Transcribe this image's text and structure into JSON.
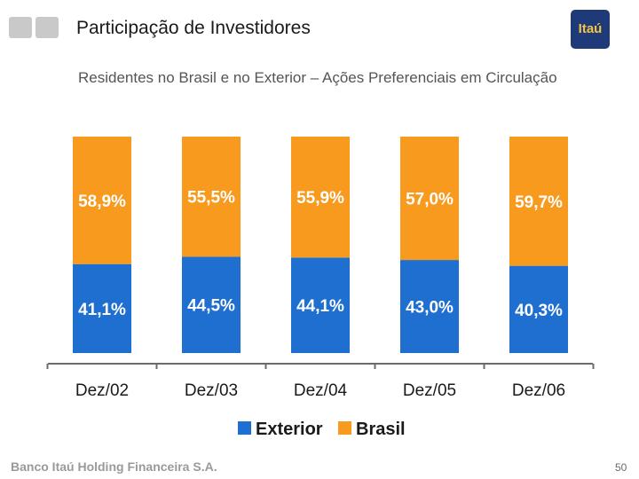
{
  "header": {
    "title": "Participação de Investidores",
    "subtitle": "Residentes no Brasil e no Exterior – Ações Preferenciais em Circulação",
    "logo_text": "Itaú"
  },
  "footer": {
    "company": "Banco Itaú Holding Financeira S.A.",
    "page_number": "50"
  },
  "colors": {
    "exterior": "#1f6fd1",
    "brasil": "#f79a1e"
  },
  "chart_data": {
    "type": "bar",
    "stacked": true,
    "percent_stacked": true,
    "categories": [
      "Dez/02",
      "Dez/03",
      "Dez/04",
      "Dez/05",
      "Dez/06"
    ],
    "series": [
      {
        "name": "Exterior",
        "values": [
          41.1,
          44.5,
          44.1,
          43.0,
          40.3
        ],
        "labels": [
          "41,1%",
          "44,5%",
          "44,1%",
          "43,0%",
          "40,3%"
        ]
      },
      {
        "name": "Brasil",
        "values": [
          58.9,
          55.5,
          55.9,
          57.0,
          59.7
        ],
        "labels": [
          "58,9%",
          "55,5%",
          "55,9%",
          "57,0%",
          "59,7%"
        ]
      }
    ],
    "ylim": [
      0,
      100
    ],
    "grid": false,
    "legend": "bottom-center"
  }
}
